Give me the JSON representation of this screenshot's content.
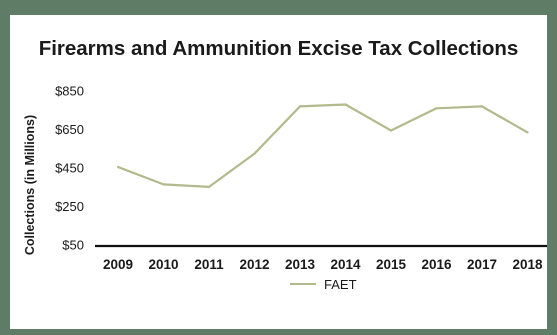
{
  "chart_data": {
    "type": "line",
    "title": "Firearms and Ammunition Excise Tax Collections",
    "xlabel": "",
    "ylabel": "Collections (in Millions)",
    "categories": [
      "2009",
      "2010",
      "2011",
      "2012",
      "2013",
      "2014",
      "2015",
      "2016",
      "2017",
      "2018"
    ],
    "series": [
      {
        "name": "FAET",
        "color": "#b2b98c",
        "values": [
          455,
          365,
          352,
          525,
          770,
          780,
          645,
          760,
          770,
          635
        ]
      }
    ],
    "yticks": [
      "$850",
      "$650",
      "$450",
      "$250",
      "$50"
    ],
    "ytick_values": [
      850,
      650,
      450,
      250,
      50
    ],
    "ylim": [
      50,
      850
    ],
    "grid": false,
    "legend_position": "bottom"
  }
}
